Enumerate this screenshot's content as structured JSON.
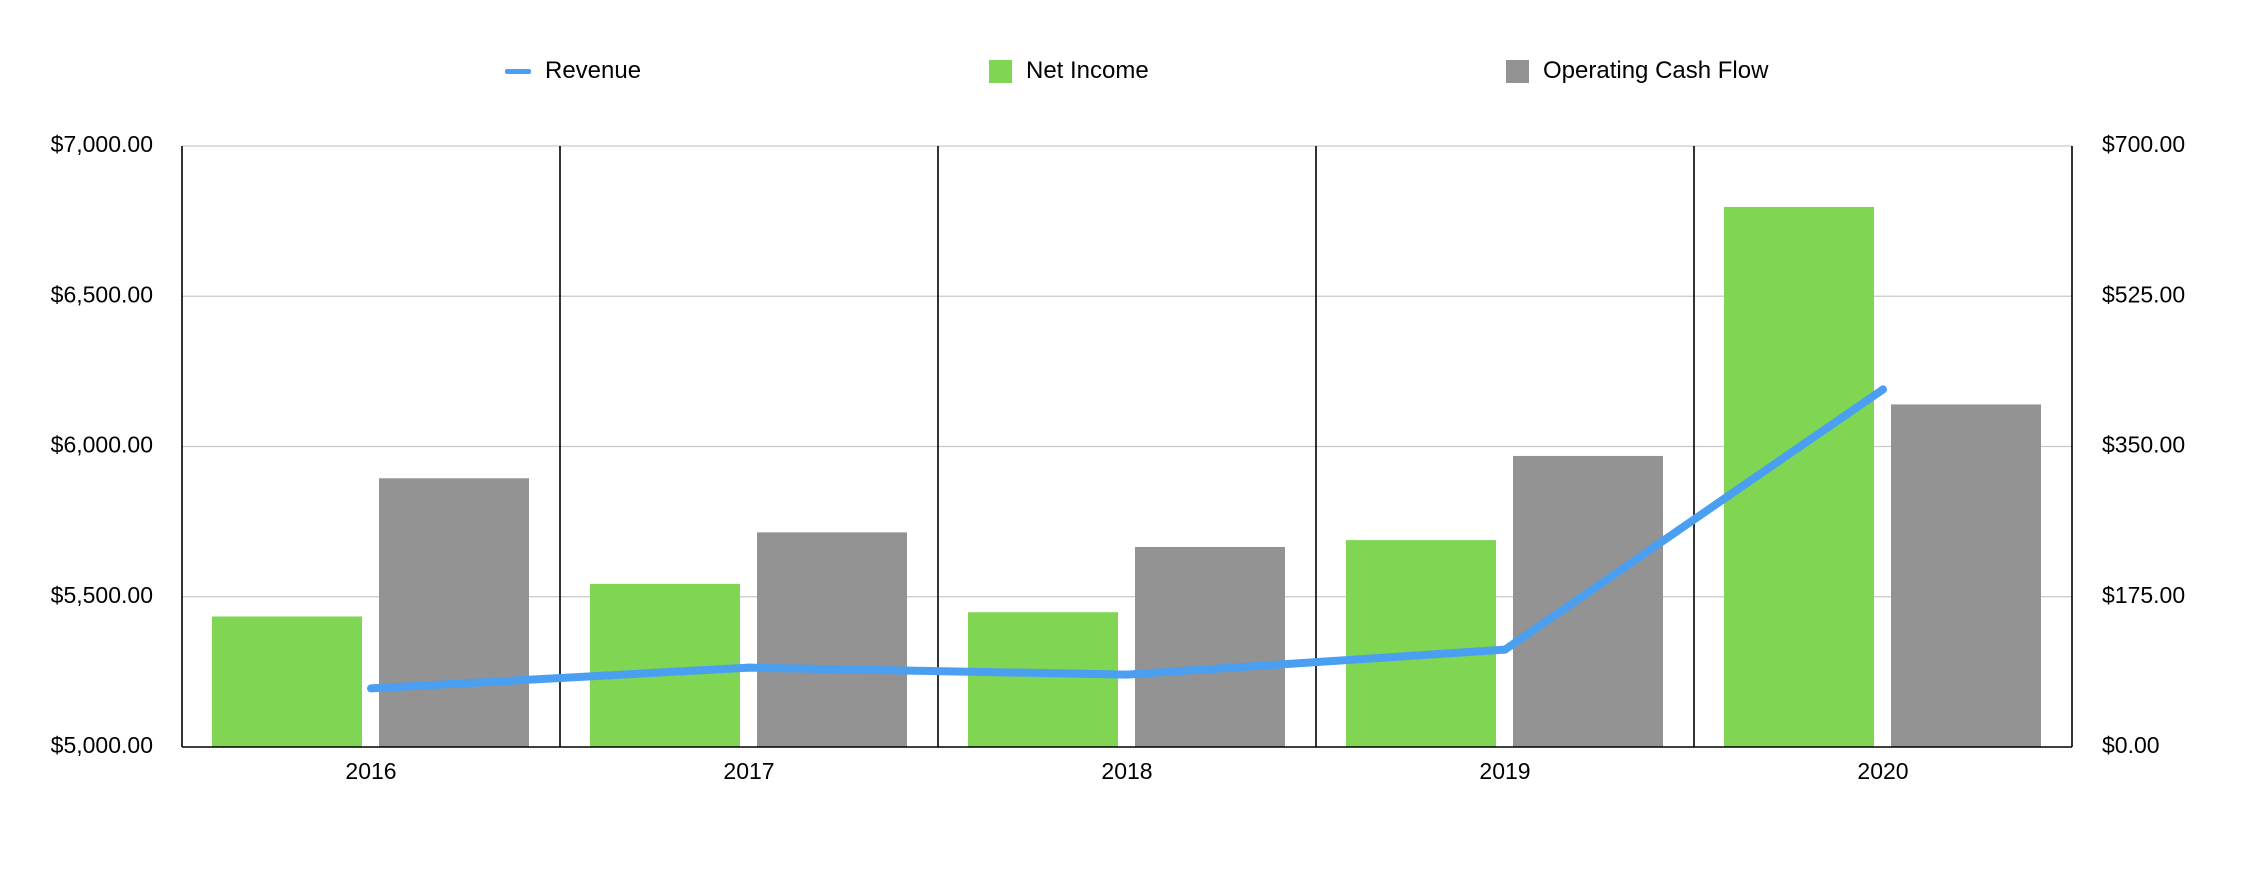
{
  "chart_data": {
    "type": "bar",
    "categories": [
      "2016",
      "2017",
      "2018",
      "2019",
      "2020"
    ],
    "series": [
      {
        "name": "Revenue",
        "type": "line",
        "axis": "left",
        "values": [
          5195,
          5264,
          5241,
          5324,
          6190
        ],
        "color": "#4a9ff0"
      },
      {
        "name": "Net Income",
        "type": "bar",
        "axis": "right",
        "values": [
          152,
          190,
          157,
          241,
          629
        ],
        "color": "#80d553"
      },
      {
        "name": "Operating Cash Flow",
        "type": "bar",
        "axis": "right",
        "values": [
          313,
          250,
          233,
          339,
          399
        ],
        "color": "#939393"
      }
    ],
    "y_left": {
      "range": [
        5000,
        7000
      ],
      "ticks": [
        5000,
        5500,
        6000,
        6500,
        7000
      ],
      "tick_labels": [
        "$5,000.00",
        "$5,500.00",
        "$6,000.00",
        "$6,500.00",
        "$7,000.00"
      ]
    },
    "y_right": {
      "range": [
        0,
        700
      ],
      "ticks": [
        0,
        175,
        350,
        525,
        700
      ],
      "tick_labels": [
        "$0.00",
        "$175.00",
        "$350.00",
        "$525.00",
        "$700.00"
      ]
    },
    "grid": true,
    "legend_position": "top",
    "gridline_color": "#c9c9c9",
    "axis_color": "#000000"
  }
}
